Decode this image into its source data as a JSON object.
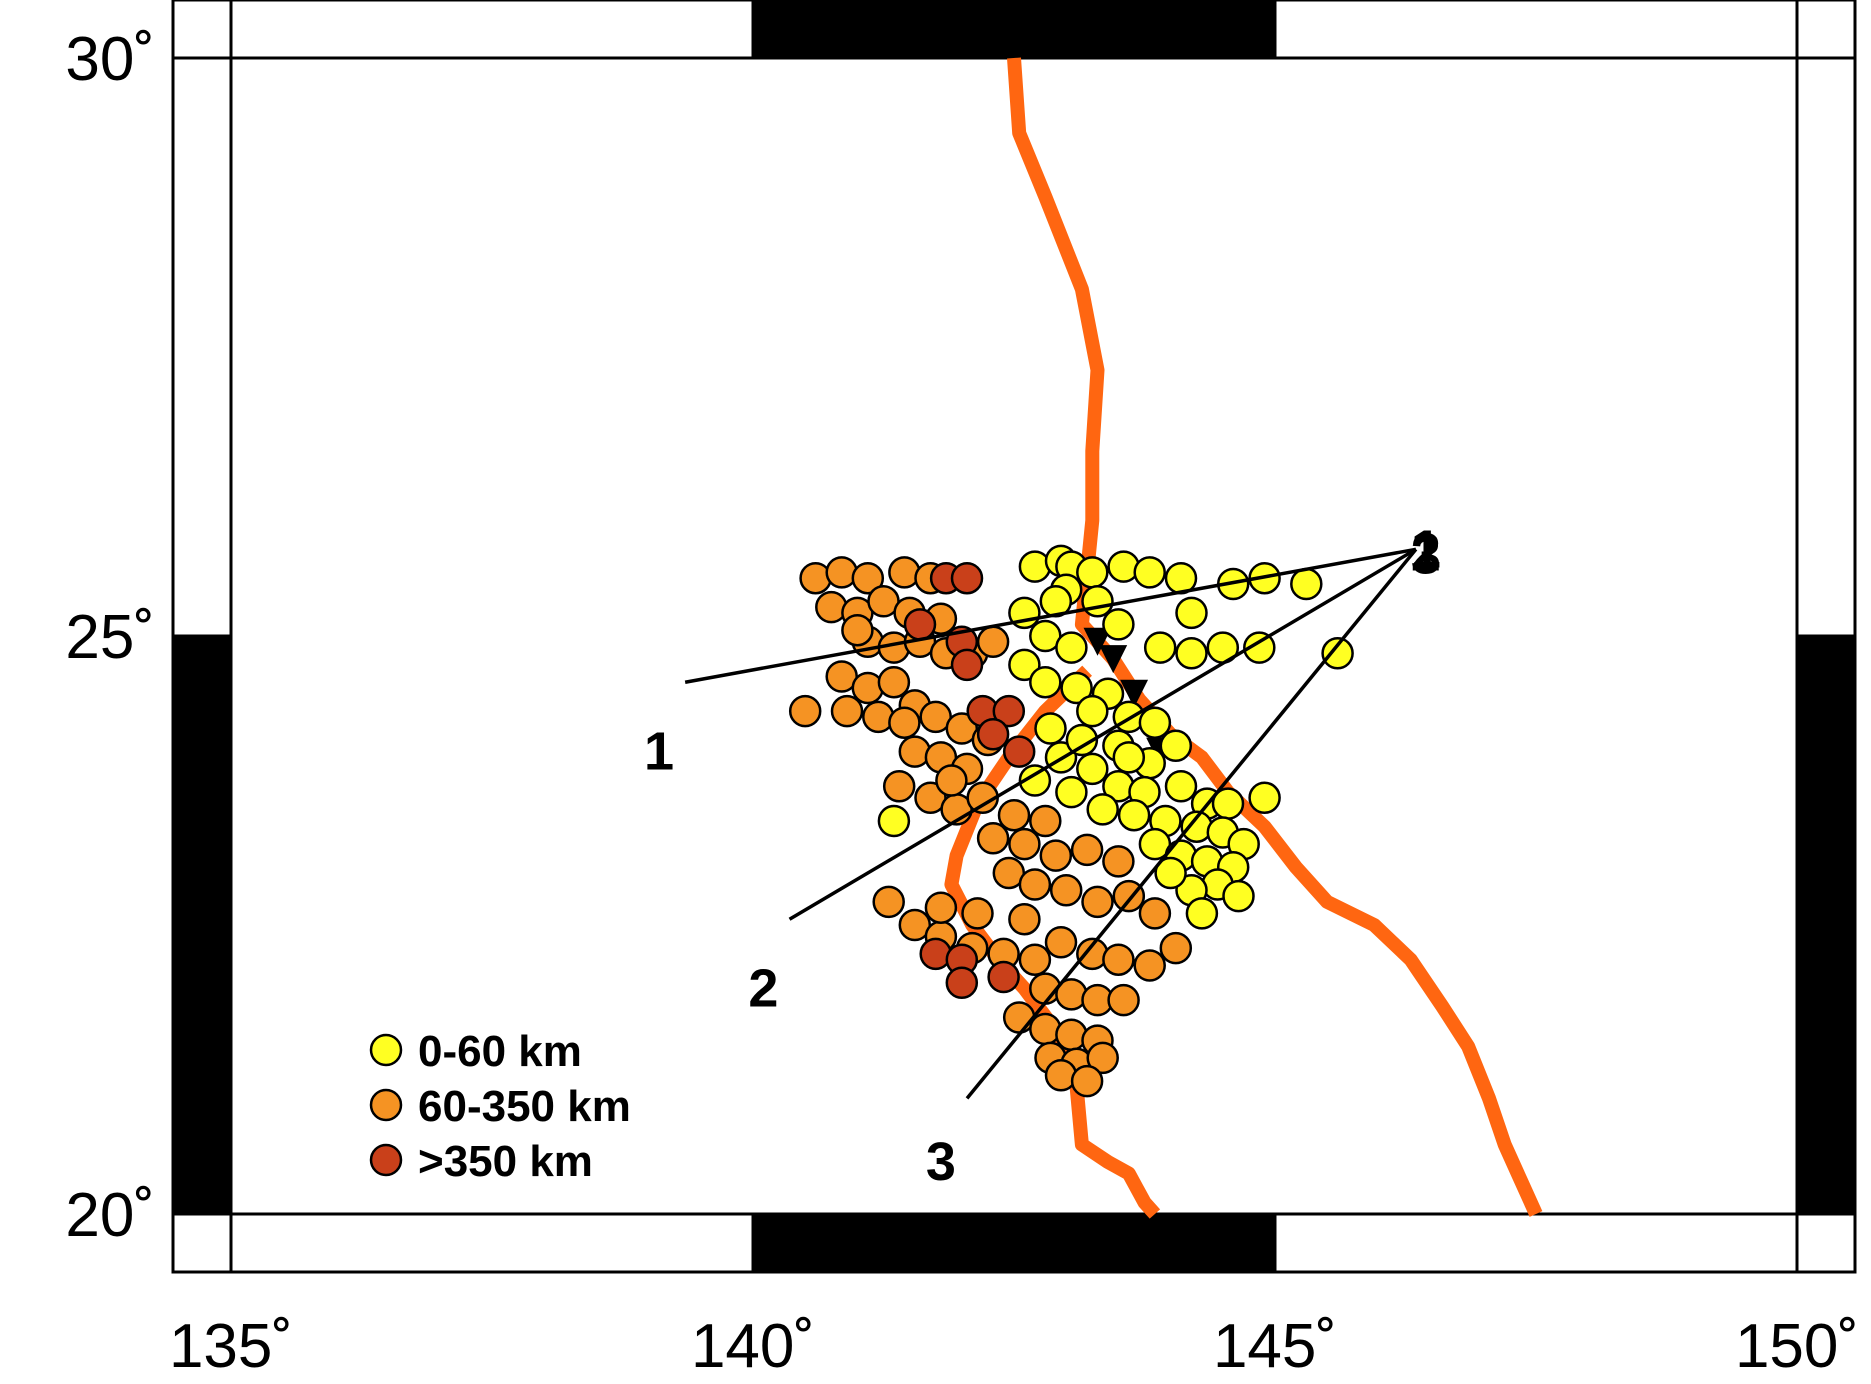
{
  "map": {
    "lon_range": [
      135,
      150
    ],
    "lat_range": [
      20,
      30
    ],
    "lon_ticks": [
      {
        "value": 135,
        "label": "135˚"
      },
      {
        "value": 140,
        "label": "140˚"
      },
      {
        "value": 145,
        "label": "145˚"
      },
      {
        "value": 150,
        "label": "150˚"
      }
    ],
    "lat_ticks": [
      {
        "value": 30,
        "label": "30˚"
      },
      {
        "value": 25,
        "label": "25˚"
      },
      {
        "value": 20,
        "label": "20˚"
      }
    ],
    "frame_style": "alternating black/white border",
    "colors": {
      "shallow": "#FFFF22",
      "intermediate": "#F59323",
      "deep": "#C9401A",
      "trench": "#FF6611",
      "stroke": "#000000"
    }
  },
  "legend": {
    "placement": "bottom-left",
    "items": [
      {
        "label": "0-60 km",
        "class": "shallow"
      },
      {
        "label": "60-350 km",
        "class": "intermediate"
      },
      {
        "label": ">350 km",
        "class": "deep"
      }
    ]
  },
  "profiles": {
    "origin": {
      "lon": 146.35,
      "lat": 25.75
    },
    "origin_labels": [
      "1",
      "2",
      "3"
    ],
    "lines": [
      {
        "label": "1",
        "start": {
          "lon": 139.35,
          "lat": 24.6
        },
        "label_pos": {
          "lon": 139.1,
          "lat": 24.0
        }
      },
      {
        "label": "2",
        "start": {
          "lon": 140.35,
          "lat": 22.55
        },
        "label_pos": {
          "lon": 140.1,
          "lat": 21.95
        }
      },
      {
        "label": "3",
        "start": {
          "lon": 142.05,
          "lat": 21.0
        },
        "label_pos": {
          "lon": 141.8,
          "lat": 20.45
        }
      }
    ]
  },
  "trenches": [
    {
      "name": "",
      "points": [
        [
          142.5,
          30.0
        ],
        [
          142.55,
          29.35
        ],
        [
          142.8,
          28.8
        ],
        [
          143.15,
          28.0
        ],
        [
          143.3,
          27.3
        ],
        [
          143.25,
          26.6
        ],
        [
          143.25,
          26.0
        ],
        [
          143.15,
          25.1
        ],
        [
          143.45,
          24.8
        ],
        [
          143.7,
          24.45
        ],
        [
          144.0,
          24.15
        ],
        [
          144.3,
          23.95
        ],
        [
          144.55,
          23.65
        ],
        [
          144.9,
          23.35
        ],
        [
          145.2,
          23.0
        ],
        [
          145.5,
          22.7
        ],
        [
          145.95,
          22.5
        ],
        [
          146.3,
          22.2
        ],
        [
          146.6,
          21.8
        ],
        [
          146.85,
          21.45
        ],
        [
          147.05,
          21.0
        ],
        [
          147.2,
          20.6
        ],
        [
          147.35,
          20.3
        ],
        [
          147.5,
          20.0
        ]
      ]
    },
    {
      "name": "",
      "points": [
        [
          143.2,
          24.7
        ],
        [
          142.8,
          24.35
        ],
        [
          142.45,
          23.95
        ],
        [
          142.15,
          23.55
        ],
        [
          141.95,
          23.1
        ],
        [
          141.9,
          22.85
        ],
        [
          142.1,
          22.5
        ],
        [
          142.35,
          22.2
        ],
        [
          142.6,
          21.95
        ],
        [
          142.85,
          21.65
        ],
        [
          143.0,
          21.4
        ],
        [
          143.1,
          21.1
        ],
        [
          143.15,
          20.6
        ],
        [
          143.4,
          20.45
        ],
        [
          143.6,
          20.35
        ],
        [
          143.75,
          20.1
        ],
        [
          143.85,
          20.0
        ]
      ]
    }
  ],
  "volcano_markers": [
    {
      "lon": 143.3,
      "lat": 24.95
    },
    {
      "lon": 143.45,
      "lat": 24.8
    },
    {
      "lon": 143.65,
      "lat": 24.5
    },
    {
      "lon": 143.9,
      "lat": 24.0
    }
  ],
  "chart_data": {
    "type": "scatter",
    "title": "",
    "xlabel": "",
    "ylabel": "",
    "xlim": [
      135,
      150
    ],
    "ylim": [
      20,
      30
    ],
    "series": [
      {
        "name": "0-60 km",
        "class": "shallow",
        "points": [
          [
            142.7,
            25.6
          ],
          [
            142.95,
            25.65
          ],
          [
            143.05,
            25.6
          ],
          [
            143.25,
            25.55
          ],
          [
            143.55,
            25.6
          ],
          [
            143.8,
            25.55
          ],
          [
            144.1,
            25.5
          ],
          [
            144.6,
            25.45
          ],
          [
            144.9,
            25.5
          ],
          [
            145.3,
            25.45
          ],
          [
            144.2,
            25.2
          ],
          [
            144.5,
            24.9
          ],
          [
            145.6,
            24.85
          ],
          [
            143.9,
            24.9
          ],
          [
            144.2,
            24.85
          ],
          [
            143.0,
            25.4
          ],
          [
            142.9,
            25.3
          ],
          [
            143.3,
            25.3
          ],
          [
            143.5,
            25.1
          ],
          [
            142.6,
            25.2
          ],
          [
            142.8,
            25.0
          ],
          [
            143.05,
            24.9
          ],
          [
            142.6,
            24.75
          ],
          [
            142.8,
            24.6
          ],
          [
            143.1,
            24.55
          ],
          [
            143.4,
            24.5
          ],
          [
            143.25,
            24.35
          ],
          [
            143.6,
            24.3
          ],
          [
            143.85,
            24.25
          ],
          [
            144.05,
            24.05
          ],
          [
            143.5,
            24.05
          ],
          [
            143.8,
            23.9
          ],
          [
            142.95,
            23.95
          ],
          [
            143.25,
            23.85
          ],
          [
            142.7,
            23.75
          ],
          [
            143.05,
            23.65
          ],
          [
            143.5,
            23.7
          ],
          [
            143.75,
            23.65
          ],
          [
            144.1,
            23.7
          ],
          [
            144.35,
            23.55
          ],
          [
            144.55,
            23.55
          ],
          [
            144.9,
            23.6
          ],
          [
            143.35,
            23.5
          ],
          [
            143.65,
            23.45
          ],
          [
            143.95,
            23.4
          ],
          [
            144.25,
            23.35
          ],
          [
            144.5,
            23.3
          ],
          [
            144.7,
            23.2
          ],
          [
            143.85,
            23.2
          ],
          [
            144.1,
            23.1
          ],
          [
            144.35,
            23.05
          ],
          [
            144.6,
            23.0
          ],
          [
            144.45,
            22.85
          ],
          [
            144.2,
            22.8
          ],
          [
            144.65,
            22.75
          ],
          [
            141.35,
            23.4
          ],
          [
            142.85,
            24.2
          ],
          [
            143.15,
            24.1
          ],
          [
            143.6,
            23.95
          ],
          [
            144.85,
            24.9
          ],
          [
            144.0,
            22.95
          ],
          [
            144.3,
            22.6
          ]
        ]
      },
      {
        "name": "60-350 km",
        "class": "intermediate",
        "points": [
          [
            140.6,
            25.5
          ],
          [
            140.85,
            25.55
          ],
          [
            141.1,
            25.5
          ],
          [
            141.45,
            25.55
          ],
          [
            141.7,
            25.5
          ],
          [
            140.75,
            25.25
          ],
          [
            141.0,
            25.2
          ],
          [
            141.25,
            25.3
          ],
          [
            141.5,
            25.2
          ],
          [
            141.8,
            25.15
          ],
          [
            141.1,
            24.95
          ],
          [
            141.35,
            24.9
          ],
          [
            141.6,
            24.95
          ],
          [
            141.85,
            24.85
          ],
          [
            142.1,
            24.85
          ],
          [
            140.85,
            24.65
          ],
          [
            141.1,
            24.55
          ],
          [
            141.35,
            24.6
          ],
          [
            141.55,
            24.4
          ],
          [
            140.9,
            24.35
          ],
          [
            141.2,
            24.3
          ],
          [
            141.45,
            24.25
          ],
          [
            141.75,
            24.3
          ],
          [
            142.0,
            24.2
          ],
          [
            142.25,
            24.1
          ],
          [
            141.55,
            24.0
          ],
          [
            141.8,
            23.95
          ],
          [
            142.05,
            23.85
          ],
          [
            141.4,
            23.7
          ],
          [
            141.7,
            23.6
          ],
          [
            141.95,
            23.5
          ],
          [
            142.2,
            23.6
          ],
          [
            142.5,
            23.45
          ],
          [
            142.8,
            23.4
          ],
          [
            142.3,
            23.25
          ],
          [
            142.6,
            23.2
          ],
          [
            142.9,
            23.1
          ],
          [
            143.2,
            23.15
          ],
          [
            143.5,
            23.05
          ],
          [
            142.45,
            22.95
          ],
          [
            142.7,
            22.85
          ],
          [
            143.0,
            22.8
          ],
          [
            143.3,
            22.7
          ],
          [
            143.6,
            22.75
          ],
          [
            143.85,
            22.6
          ],
          [
            141.3,
            22.7
          ],
          [
            141.55,
            22.5
          ],
          [
            141.8,
            22.4
          ],
          [
            142.1,
            22.3
          ],
          [
            142.4,
            22.25
          ],
          [
            142.7,
            22.2
          ],
          [
            142.95,
            22.35
          ],
          [
            143.25,
            22.25
          ],
          [
            143.5,
            22.2
          ],
          [
            143.8,
            22.15
          ],
          [
            144.05,
            22.3
          ],
          [
            142.8,
            21.95
          ],
          [
            143.05,
            21.9
          ],
          [
            143.3,
            21.85
          ],
          [
            143.55,
            21.85
          ],
          [
            142.55,
            21.7
          ],
          [
            142.8,
            21.6
          ],
          [
            143.05,
            21.55
          ],
          [
            143.3,
            21.5
          ],
          [
            142.85,
            21.35
          ],
          [
            143.1,
            21.3
          ],
          [
            143.35,
            21.35
          ],
          [
            142.95,
            21.2
          ],
          [
            143.2,
            21.15
          ],
          [
            140.5,
            24.35
          ],
          [
            141.0,
            25.05
          ],
          [
            142.3,
            24.95
          ],
          [
            141.9,
            23.75
          ],
          [
            142.15,
            22.6
          ],
          [
            142.6,
            22.55
          ],
          [
            141.8,
            22.65
          ]
        ]
      },
      {
        "name": ">350 km",
        "class": "deep",
        "points": [
          [
            141.85,
            25.5
          ],
          [
            142.05,
            25.5
          ],
          [
            141.6,
            25.1
          ],
          [
            142.0,
            24.95
          ],
          [
            142.05,
            24.75
          ],
          [
            142.2,
            24.35
          ],
          [
            142.45,
            24.35
          ],
          [
            142.3,
            24.15
          ],
          [
            142.55,
            24.0
          ],
          [
            141.75,
            22.25
          ],
          [
            142.0,
            22.2
          ],
          [
            142.4,
            22.05
          ],
          [
            142.0,
            22.0
          ]
        ]
      }
    ]
  }
}
